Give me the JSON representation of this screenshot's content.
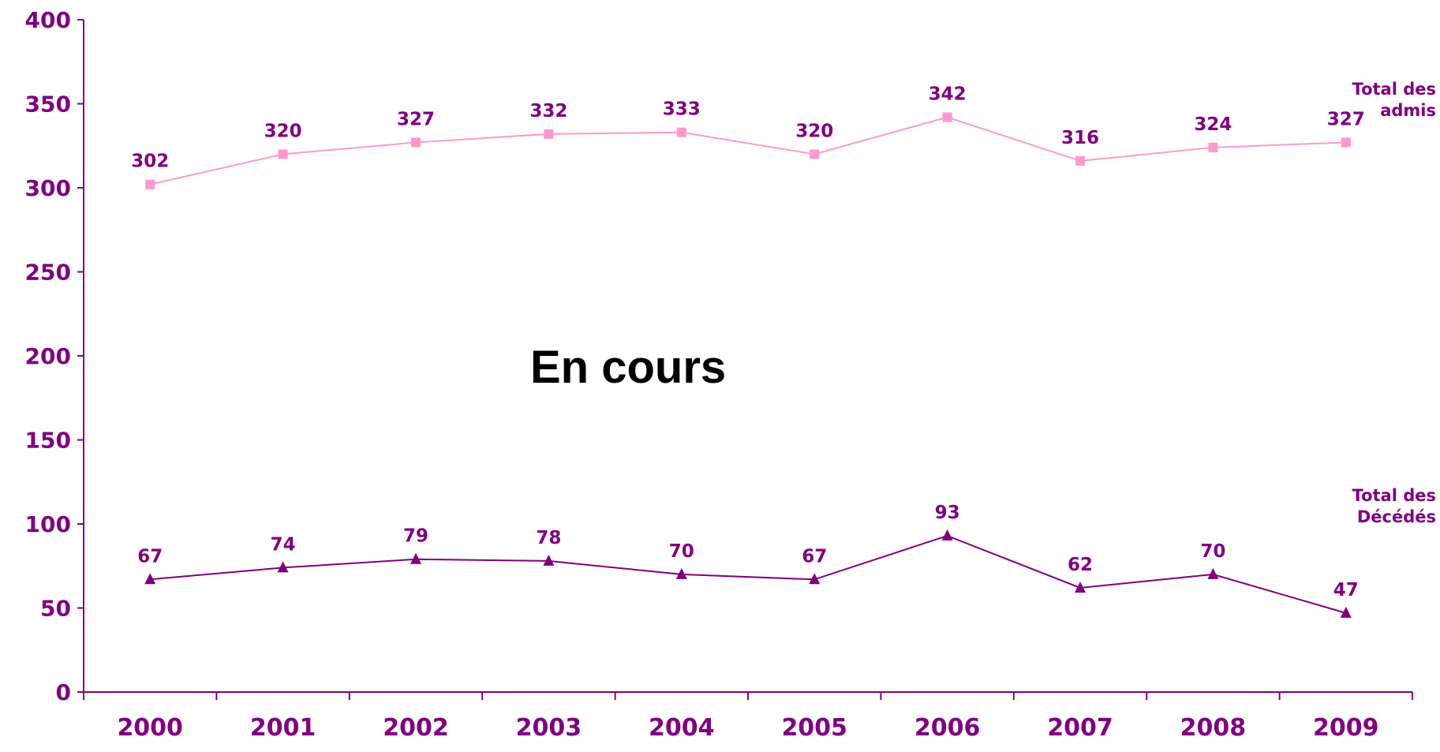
{
  "chart_data": {
    "type": "line",
    "categories": [
      "2000",
      "2001",
      "2002",
      "2003",
      "2004",
      "2005",
      "2006",
      "2007",
      "2008",
      "2009"
    ],
    "series": [
      {
        "name": "Total des admis",
        "color": "#ff99cc",
        "marker": "square",
        "values": [
          302,
          320,
          327,
          332,
          333,
          320,
          342,
          316,
          324,
          327
        ]
      },
      {
        "name": "Total des Décédés",
        "color": "#800080",
        "marker": "triangle",
        "values": [
          67,
          74,
          79,
          78,
          70,
          67,
          93,
          62,
          70,
          47
        ]
      }
    ],
    "annotation": "En cours",
    "ylim": [
      0,
      400
    ],
    "yticks": [
      0,
      50,
      100,
      150,
      200,
      250,
      300,
      350,
      400
    ],
    "axis_color": "#800080"
  }
}
